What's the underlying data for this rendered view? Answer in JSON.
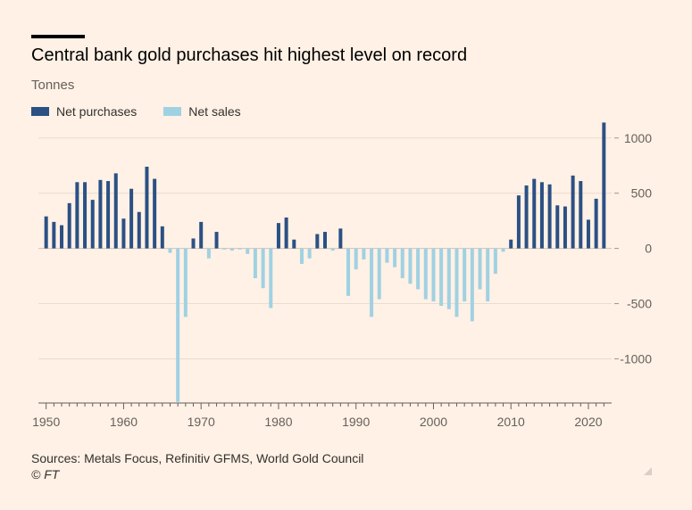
{
  "header": {
    "title": "Central bank gold purchases hit highest level on record",
    "subtitle": "Tonnes"
  },
  "legend": {
    "purchases_label": "Net purchases",
    "sales_label": "Net sales"
  },
  "colors": {
    "purchases": "#2b5084",
    "sales": "#a0d1e3",
    "grid": "#e9dccf",
    "background": "#fff1e5"
  },
  "chart_data": {
    "type": "bar",
    "title": "Central bank gold purchases hit highest level on record",
    "ylabel": "Tonnes",
    "xlabel": "",
    "ylim": [
      -1400,
      1200
    ],
    "xlim": [
      1949,
      2023
    ],
    "yticks": [
      1000,
      500,
      0,
      -500,
      -1000
    ],
    "ytick_labels": [
      "1000",
      "500",
      "0",
      "-500",
      "-1000"
    ],
    "xticks": [
      1950,
      1960,
      1970,
      1980,
      1990,
      2000,
      2010,
      2020
    ],
    "xtick_labels": [
      "1950",
      "1960",
      "1970",
      "1980",
      "1990",
      "2000",
      "2010",
      "2020"
    ],
    "series": [
      {
        "name": "Net purchases",
        "color": "#2b5084",
        "rule": "value >= 0"
      },
      {
        "name": "Net sales",
        "color": "#a0d1e3",
        "rule": "value < 0"
      }
    ],
    "x": [
      1950,
      1951,
      1952,
      1953,
      1954,
      1955,
      1956,
      1957,
      1958,
      1959,
      1960,
      1961,
      1962,
      1963,
      1964,
      1965,
      1966,
      1967,
      1968,
      1969,
      1970,
      1971,
      1972,
      1973,
      1974,
      1975,
      1976,
      1977,
      1978,
      1979,
      1980,
      1981,
      1982,
      1983,
      1984,
      1985,
      1986,
      1987,
      1988,
      1989,
      1990,
      1991,
      1992,
      1993,
      1994,
      1995,
      1996,
      1997,
      1998,
      1999,
      2000,
      2001,
      2002,
      2003,
      2004,
      2005,
      2006,
      2007,
      2008,
      2009,
      2010,
      2011,
      2012,
      2013,
      2014,
      2015,
      2016,
      2017,
      2018,
      2019,
      2020,
      2021,
      2022
    ],
    "values": [
      290,
      240,
      210,
      410,
      600,
      600,
      440,
      620,
      610,
      680,
      270,
      540,
      330,
      740,
      630,
      200,
      -40,
      -1390,
      -620,
      90,
      240,
      -90,
      150,
      -10,
      -20,
      -10,
      -50,
      -270,
      -360,
      -540,
      230,
      280,
      80,
      -140,
      -90,
      130,
      150,
      -20,
      180,
      -430,
      -190,
      -100,
      -620,
      -460,
      -130,
      -170,
      -270,
      -320,
      -370,
      -460,
      -480,
      -520,
      -550,
      -620,
      -480,
      -660,
      -370,
      -480,
      -230,
      -30,
      80,
      480,
      570,
      630,
      600,
      580,
      390,
      380,
      660,
      610,
      260,
      450,
      1140
    ]
  },
  "footer": {
    "source": "Sources: Metals Focus, Refinitiv GFMS, World Gold Council",
    "credit": "© FT"
  }
}
